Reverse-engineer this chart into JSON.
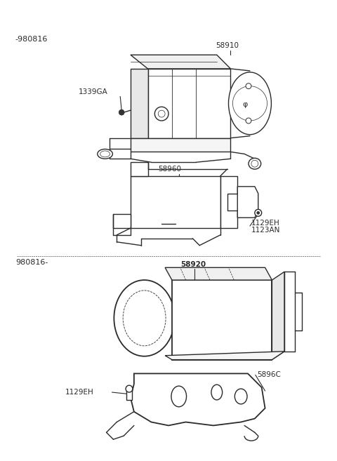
{
  "bg_color": "#ffffff",
  "line_color": "#2a2a2a",
  "text_color": "#2a2a2a",
  "labels": {
    "top_date": "-980816",
    "bottom_date": "980816-",
    "part_58910": "58910",
    "part_1339GA": "1339GA",
    "part_58960": "58960",
    "part_1129EH_1": "1129EH",
    "part_1123AN": "1123AN",
    "part_58920": "58920",
    "part_5896C": "5896C",
    "part_1129EH_2": "1129EH"
  },
  "figsize": [
    4.8,
    6.57
  ],
  "dpi": 100
}
